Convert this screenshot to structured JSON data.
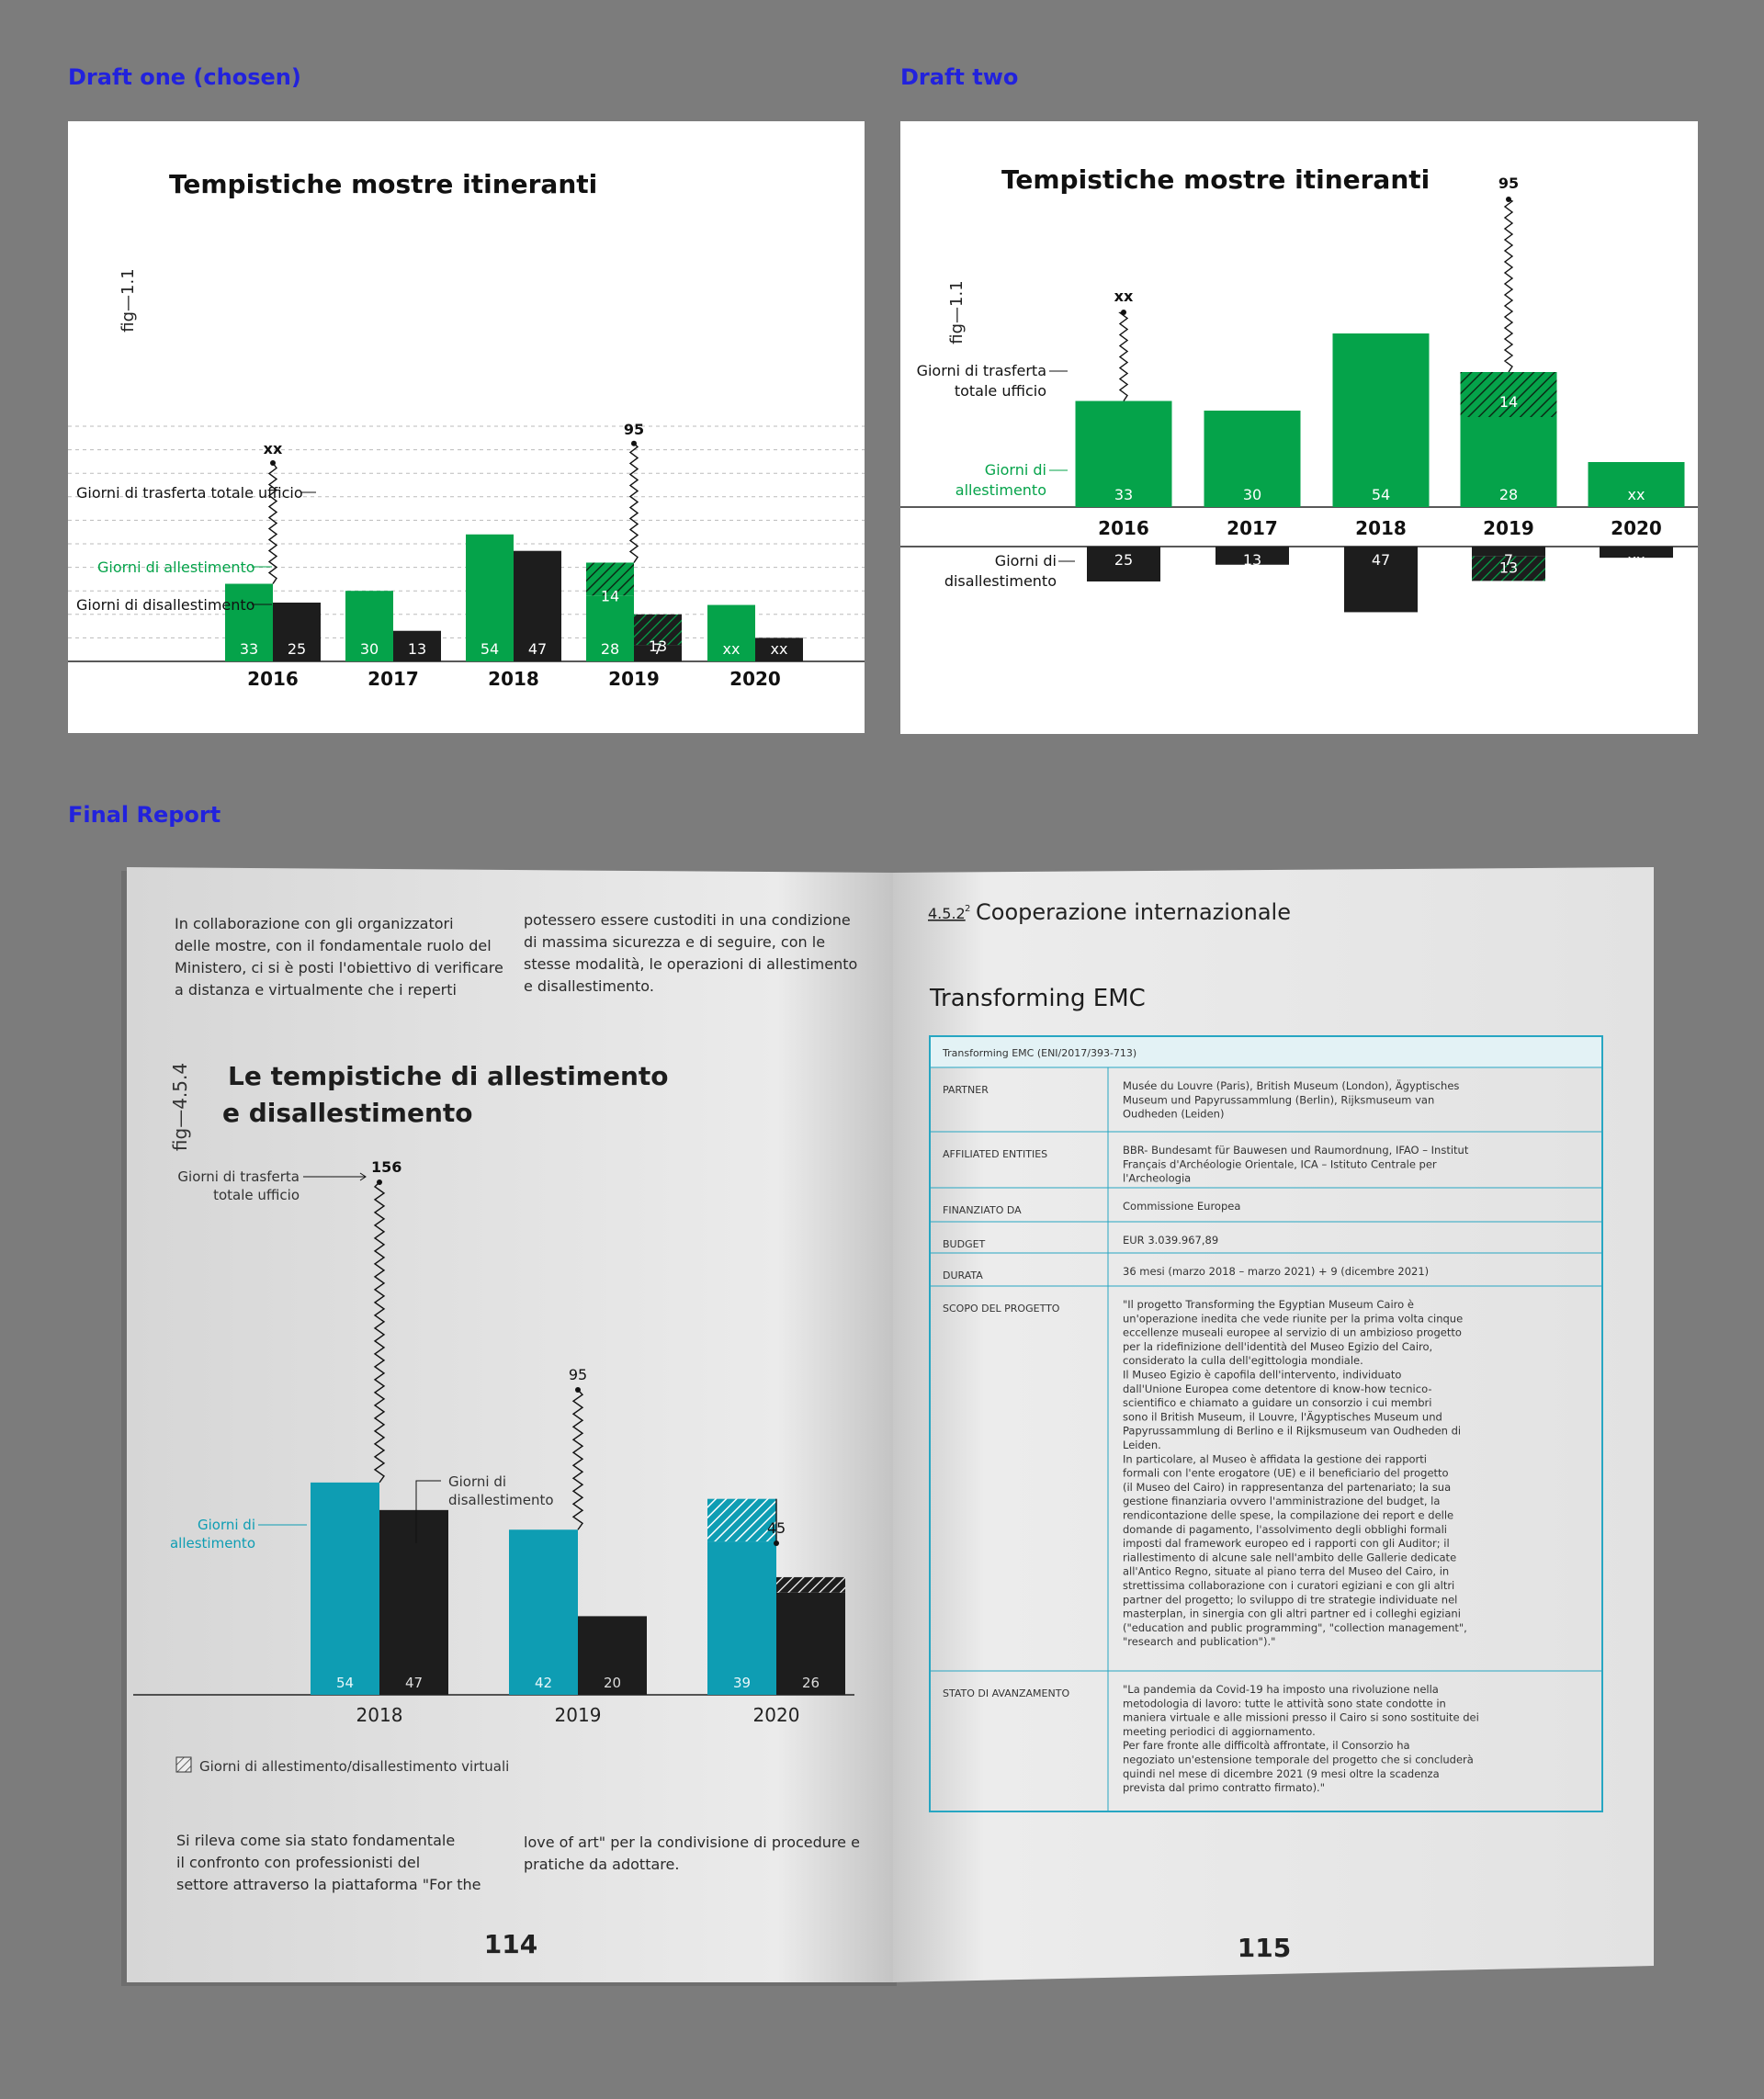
{
  "headings": {
    "draft_one": "Draft one (chosen)",
    "draft_two": "Draft two",
    "final": "Final Report"
  },
  "colors": {
    "heading": "#2222dd",
    "green": "#05a34a",
    "black": "#1d1d1d",
    "teal": "#0e9db3",
    "background": "#7c7c7c"
  },
  "chart_data": [
    {
      "type": "bar",
      "title": "Tempistiche mostre itineranti",
      "fig_label": "fig—1.1",
      "categories": [
        "2016",
        "2017",
        "2018",
        "2019",
        "2020"
      ],
      "series": [
        {
          "name": "Giorni di allestimento",
          "values": [
            33,
            30,
            54,
            28,
            null
          ],
          "labels": [
            "33",
            "30",
            "54",
            "28",
            "xx"
          ],
          "virtual": [
            0,
            0,
            0,
            14,
            0
          ],
          "virtual_labels": [
            "",
            "",
            "",
            "14",
            ""
          ]
        },
        {
          "name": "Giorni di disallestimento",
          "values": [
            25,
            13,
            47,
            7,
            null
          ],
          "labels": [
            "25",
            "13",
            "47",
            "7",
            "xx"
          ],
          "virtual": [
            0,
            0,
            0,
            13,
            0
          ],
          "virtual_labels": [
            "",
            "",
            "",
            "13",
            ""
          ]
        }
      ],
      "trasferta": {
        "name": "Giorni di trasferta totale ufficio",
        "values": [
          null,
          null,
          null,
          95,
          null
        ],
        "labels": [
          "xx",
          "",
          "",
          "95",
          ""
        ]
      },
      "ylim": [
        0,
        100
      ],
      "grid": true
    },
    {
      "type": "bar",
      "title": "Tempistiche mostre itineranti",
      "fig_label": "fig—1.1",
      "categories": [
        "2016",
        "2017",
        "2018",
        "2019",
        "2020"
      ],
      "series": [
        {
          "name": "Giorni di allestimento",
          "legend": [
            "Giorni di",
            "allestimento"
          ],
          "values": [
            33,
            30,
            54,
            28,
            null
          ],
          "labels": [
            "33",
            "30",
            "54",
            "28",
            "xx"
          ],
          "virtual": [
            0,
            0,
            0,
            14,
            0
          ],
          "virtual_labels": [
            "",
            "",
            "",
            "14",
            ""
          ]
        },
        {
          "name": "Giorni di disallestimento",
          "legend": [
            "Giorni di",
            "disallestimento"
          ],
          "values": [
            25,
            13,
            47,
            7,
            null
          ],
          "labels": [
            "25",
            "13",
            "47",
            "7",
            "xx"
          ],
          "virtual": [
            0,
            0,
            0,
            13,
            0
          ],
          "virtual_labels": [
            "",
            "",
            "",
            "13",
            ""
          ]
        }
      ],
      "trasferta": {
        "name": "Giorni di trasferta totale ufficio",
        "legend": [
          "Giorni di trasferta",
          "totale ufficio"
        ],
        "values": [
          null,
          null,
          null,
          95,
          null
        ],
        "labels": [
          "xx",
          "",
          "",
          "95",
          ""
        ]
      },
      "grid": false
    },
    {
      "type": "bar",
      "title_lines": [
        "Le tempistiche di allestimento",
        "e disallestimento"
      ],
      "fig_label": "fig—4.5.4",
      "categories": [
        "2018",
        "2019",
        "2020"
      ],
      "series": [
        {
          "name": "Giorni di allestimento",
          "legend": [
            "Giorni di",
            "allestimento"
          ],
          "values": [
            54,
            42,
            39
          ],
          "labels": [
            "54",
            "42",
            "39"
          ],
          "virtual": [
            0,
            0,
            16
          ]
        },
        {
          "name": "Giorni di disallestimento",
          "legend": [
            "Giorni di",
            "disallestimento"
          ],
          "values": [
            47,
            20,
            26
          ],
          "labels": [
            "47",
            "20",
            "26"
          ],
          "virtual": [
            0,
            0,
            8
          ]
        }
      ],
      "trasferta": {
        "name": "Giorni di trasferta totale ufficio",
        "legend": [
          "Giorni di trasferta",
          "totale ufficio"
        ],
        "values": [
          156,
          95,
          45
        ],
        "labels": [
          "156",
          "95",
          "45"
        ]
      },
      "virtual_legend": "Giorni di allestimento/disallestimento virtuali"
    }
  ],
  "booklet": {
    "left_top_col1": [
      "In collaborazione con gli organizzatori",
      "delle mostre, con il fondamentale ruolo del",
      "Ministero, ci si è posti l'obiettivo di verificare",
      "a distanza e virtualmente che i reperti"
    ],
    "left_top_col2": [
      "potessero essere custoditi in una condizione",
      "di massima sicurezza e di seguire, con le",
      "stesse modalità, le operazioni di allestimento",
      "e disallestimento."
    ],
    "left_bottom_col1": [
      "Si rileva come sia stato fondamentale",
      "il confronto con professionisti del",
      "settore attraverso la piattaforma \"For the"
    ],
    "left_bottom_col2": [
      "love of art\" per la condivisione di procedure e",
      "pratiche da adottare."
    ],
    "page_left": "114",
    "page_right": "115",
    "section_num": "4.5.2",
    "section_sup": "2",
    "section_title": "Cooperazione internazionale",
    "table_title": "Transforming EMC",
    "table_caption": "Transforming EMC (ENI/2017/393-713)",
    "rows": [
      {
        "label": "PARTNER",
        "lines": [
          "Musée du Louvre (Paris), British Museum (London), Ägyptisches",
          "Museum und Papyrussammlung (Berlin), Rijksmuseum van",
          "Oudheden (Leiden)"
        ]
      },
      {
        "label": "AFFILIATED ENTITIES",
        "lines": [
          "BBR- Bundesamt für Bauwesen und Raumordnung, IFAO – Institut",
          "Français d'Archéologie Orientale, ICA – Istituto Centrale per",
          "l'Archeologia"
        ]
      },
      {
        "label": "FINANZIATO DA",
        "lines": [
          "Commissione Europea"
        ]
      },
      {
        "label": "BUDGET",
        "lines": [
          "EUR 3.039.967,89"
        ]
      },
      {
        "label": "DURATA",
        "lines": [
          "36 mesi (marzo 2018 – marzo 2021) + 9 (dicembre 2021)"
        ]
      },
      {
        "label": "SCOPO DEL PROGETTO",
        "lines": [
          "\"Il progetto Transforming the Egyptian Museum Cairo è",
          "un'operazione inedita che vede riunite per la prima volta cinque",
          "eccellenze museali europee al servizio di un ambizioso progetto",
          "per la ridefinizione dell'identità del Museo Egizio del Cairo,",
          "considerato la culla dell'egittologia mondiale.",
          "    Il Museo Egizio è capofila dell'intervento, individuato",
          "dall'Unione Europea come detentore di know-how tecnico-",
          "scientifico e chiamato a guidare un consorzio i cui membri",
          "sono il British Museum, il Louvre, l'Ägyptisches Museum und",
          "Papyrussammlung di Berlino e il Rijksmuseum van Oudheden di",
          "Leiden.",
          "    In particolare, al Museo è affidata la gestione dei rapporti",
          "formali con l'ente erogatore (UE) e il beneficiario del progetto",
          "(il Museo del Cairo) in rappresentanza del partenariato; la sua",
          "gestione finanziaria ovvero l'amministrazione del budget, la",
          "rendicontazione delle spese, la compilazione dei report e delle",
          "domande di pagamento, l'assolvimento degli obblighi formali",
          "imposti dal framework europeo ed i rapporti con gli Auditor; il",
          "riallestimento di alcune sale nell'ambito delle Gallerie dedicate",
          "all'Antico Regno, situate al piano terra del Museo del Cairo, in",
          "strettissima collaborazione con i curatori egiziani e con gli altri",
          "partner del progetto; lo sviluppo di tre strategie individuate nel",
          "masterplan, in sinergia con gli altri partner ed i colleghi egiziani",
          "(\"education and public programming\", \"collection management\",",
          "\"research and publication\").\""
        ]
      },
      {
        "label": "STATO DI AVANZAMENTO",
        "lines": [
          "\"La pandemia da Covid-19 ha imposto una rivoluzione nella",
          "metodologia di lavoro: tutte le attività sono state condotte in",
          "maniera virtuale e alle missioni presso il Cairo si sono sostituite dei",
          "meeting periodici di aggiornamento.",
          "    Per fare fronte alle difficoltà affrontate, il Consorzio ha",
          "negoziato un'estensione temporale del progetto che si concluderà",
          "quindi nel mese di dicembre 2021 (9 mesi oltre la scadenza",
          "prevista dal primo contratto firmato).\""
        ]
      }
    ]
  }
}
